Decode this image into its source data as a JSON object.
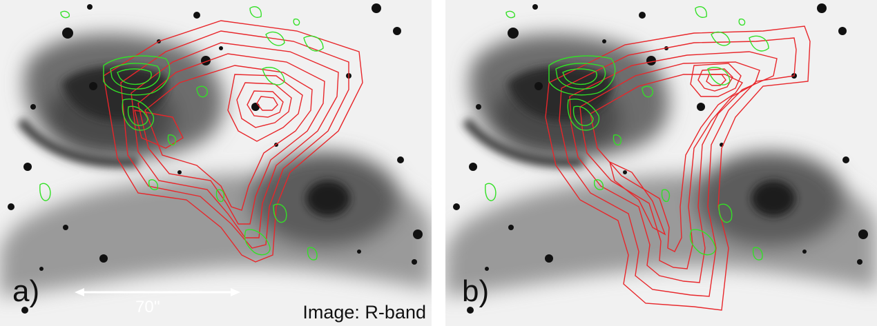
{
  "panels": [
    {
      "id": "a",
      "label": "a)"
    },
    {
      "id": "b",
      "label": "b)"
    }
  ],
  "scale_bar": {
    "label": "70''"
  },
  "image_label": "Image: R-band",
  "colors": {
    "radio_contours": "#e8262a",
    "optical_contours": "#33e026",
    "scale_bar": "#ffffff",
    "sky_background": "#f4f4f4",
    "galaxy_emission": "#3a3a3a"
  }
}
